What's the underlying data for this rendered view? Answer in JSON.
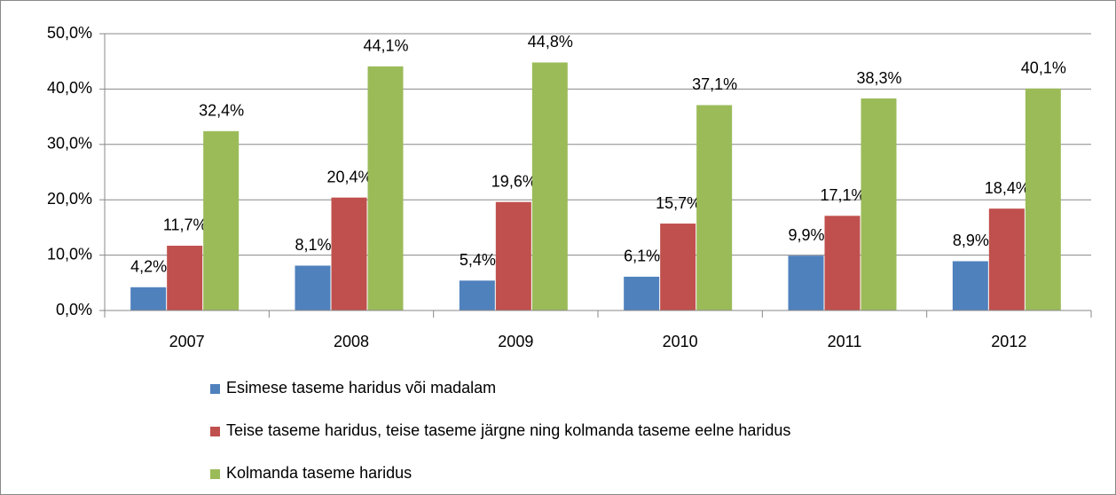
{
  "chart_data": {
    "type": "bar",
    "categories": [
      "2007",
      "2008",
      "2009",
      "2010",
      "2011",
      "2012"
    ],
    "series": [
      {
        "name": "Esimese taseme haridus või madalam",
        "color": "#4f81bd",
        "values": [
          4.2,
          8.1,
          5.4,
          6.1,
          9.9,
          8.9
        ],
        "value_labels": [
          "4,2%",
          "8,1%",
          "5,4%",
          "6,1%",
          "9,9%",
          "8,9%"
        ]
      },
      {
        "name": "Teise taseme haridus, teise taseme järgne ning kolmanda taseme eelne haridus",
        "color": "#c0504d",
        "values": [
          11.7,
          20.4,
          19.6,
          15.7,
          17.1,
          18.4
        ],
        "value_labels": [
          "11,7%",
          "20,4%",
          "19,6%",
          "15,7%",
          "17,1%",
          "18,4%"
        ]
      },
      {
        "name": "Kolmanda taseme haridus",
        "color": "#9bbb59",
        "values": [
          32.4,
          44.1,
          44.8,
          37.1,
          38.3,
          40.1
        ],
        "value_labels": [
          "32,4%",
          "44,1%",
          "44,8%",
          "37,1%",
          "38,3%",
          "40,1%"
        ]
      }
    ],
    "ylim": [
      0,
      50
    ],
    "yticks": [
      {
        "value": 0,
        "label": "0,0%"
      },
      {
        "value": 10,
        "label": "10,0%"
      },
      {
        "value": 20,
        "label": "20,0%"
      },
      {
        "value": 30,
        "label": "30,0%"
      },
      {
        "value": 40,
        "label": "40,0%"
      },
      {
        "value": 50,
        "label": "50,0%"
      }
    ],
    "grid": true,
    "legend": "bottom"
  }
}
